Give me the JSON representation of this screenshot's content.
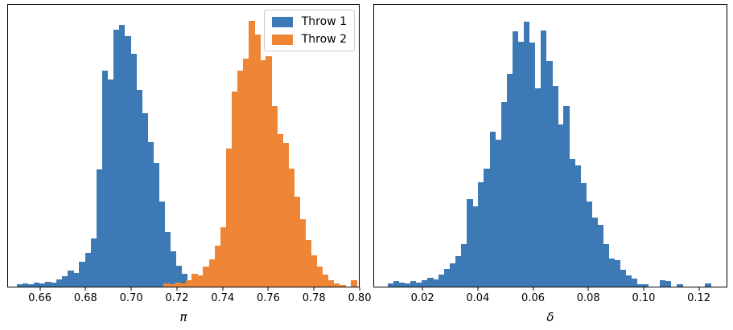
{
  "figure": {
    "background": "#ffffff",
    "colors": {
      "throw1_blue": "#3d7ab5",
      "throw2_orange": "#ef8636",
      "spine": "#000000",
      "legend_border": "#cccccc"
    }
  },
  "legend": {
    "entries": [
      {
        "label": "Throw 1",
        "color": "#3d7ab5"
      },
      {
        "label": "Throw 2",
        "color": "#ef8636"
      }
    ]
  },
  "chart_data": [
    {
      "type": "histogram",
      "panel": "left",
      "title": "",
      "xlabel": "π",
      "ylabel": "",
      "xlim": [
        0.6457,
        0.8
      ],
      "grid": false,
      "y_axis": "unlabeled frequency axis (no ticks); bar heights below are fractions of full axes height",
      "xticks": {
        "values": [
          0.66,
          0.68,
          0.7,
          0.72,
          0.74,
          0.76,
          0.78,
          0.8
        ],
        "labels": [
          "0.66",
          "0.68",
          "0.70",
          "0.72",
          "0.74",
          "0.76",
          "0.78",
          "0.80"
        ]
      },
      "legend_position": "upper right",
      "series": [
        {
          "name": "Throw 1",
          "color": "#3d7ab5",
          "bin_start": 0.6495,
          "bin_width": 0.0025,
          "heights": [
            0.008,
            0.011,
            0.008,
            0.014,
            0.011,
            0.017,
            0.014,
            0.025,
            0.037,
            0.056,
            0.048,
            0.087,
            0.121,
            0.171,
            0.416,
            0.767,
            0.736,
            0.913,
            0.93,
            0.888,
            0.826,
            0.697,
            0.615,
            0.514,
            0.438,
            0.303,
            0.194,
            0.124,
            0.073,
            0.045,
            0.022,
            0.014,
            0.008,
            0.034,
            0.014
          ]
        },
        {
          "name": "Throw 2",
          "color": "#ef8636",
          "bin_start": 0.714,
          "bin_width": 0.0025,
          "heights": [
            0.011,
            0.008,
            0.014,
            0.011,
            0.022,
            0.045,
            0.039,
            0.07,
            0.098,
            0.146,
            0.211,
            0.489,
            0.691,
            0.767,
            0.809,
            0.944,
            0.896,
            0.803,
            0.817,
            0.64,
            0.54,
            0.51,
            0.42,
            0.32,
            0.24,
            0.165,
            0.11,
            0.07,
            0.042,
            0.022,
            0.011,
            0.006,
            0,
            0.022
          ]
        }
      ]
    },
    {
      "type": "histogram",
      "panel": "right",
      "title": "",
      "xlabel": "δ",
      "ylabel": "",
      "xlim": [
        0.0022,
        0.1303
      ],
      "grid": false,
      "y_axis": "unlabeled frequency axis (no ticks); bar heights below are fractions of full axes height",
      "xticks": {
        "values": [
          0.02,
          0.04,
          0.06,
          0.08,
          0.1,
          0.12
        ],
        "labels": [
          "0.02",
          "0.04",
          "0.06",
          "0.08",
          "0.10",
          "0.12"
        ]
      },
      "legend_position": "none",
      "series": [
        {
          "name": "",
          "color": "#3d7ab5",
          "bin_start": 0.0071,
          "bin_width": 0.00206,
          "heights": [
            0.011,
            0.02,
            0.014,
            0.011,
            0.02,
            0.014,
            0.022,
            0.031,
            0.025,
            0.042,
            0.062,
            0.084,
            0.107,
            0.15,
            0.31,
            0.285,
            0.37,
            0.42,
            0.551,
            0.522,
            0.654,
            0.756,
            0.905,
            0.868,
            0.94,
            0.865,
            0.705,
            0.91,
            0.8,
            0.713,
            0.575,
            0.64,
            0.452,
            0.43,
            0.368,
            0.303,
            0.245,
            0.218,
            0.152,
            0.101,
            0.095,
            0.06,
            0.04,
            0.028,
            0.01,
            0.008,
            0,
            0,
            0.023,
            0.02,
            0,
            0.008,
            0,
            0,
            0,
            0,
            0.011
          ]
        }
      ]
    }
  ]
}
